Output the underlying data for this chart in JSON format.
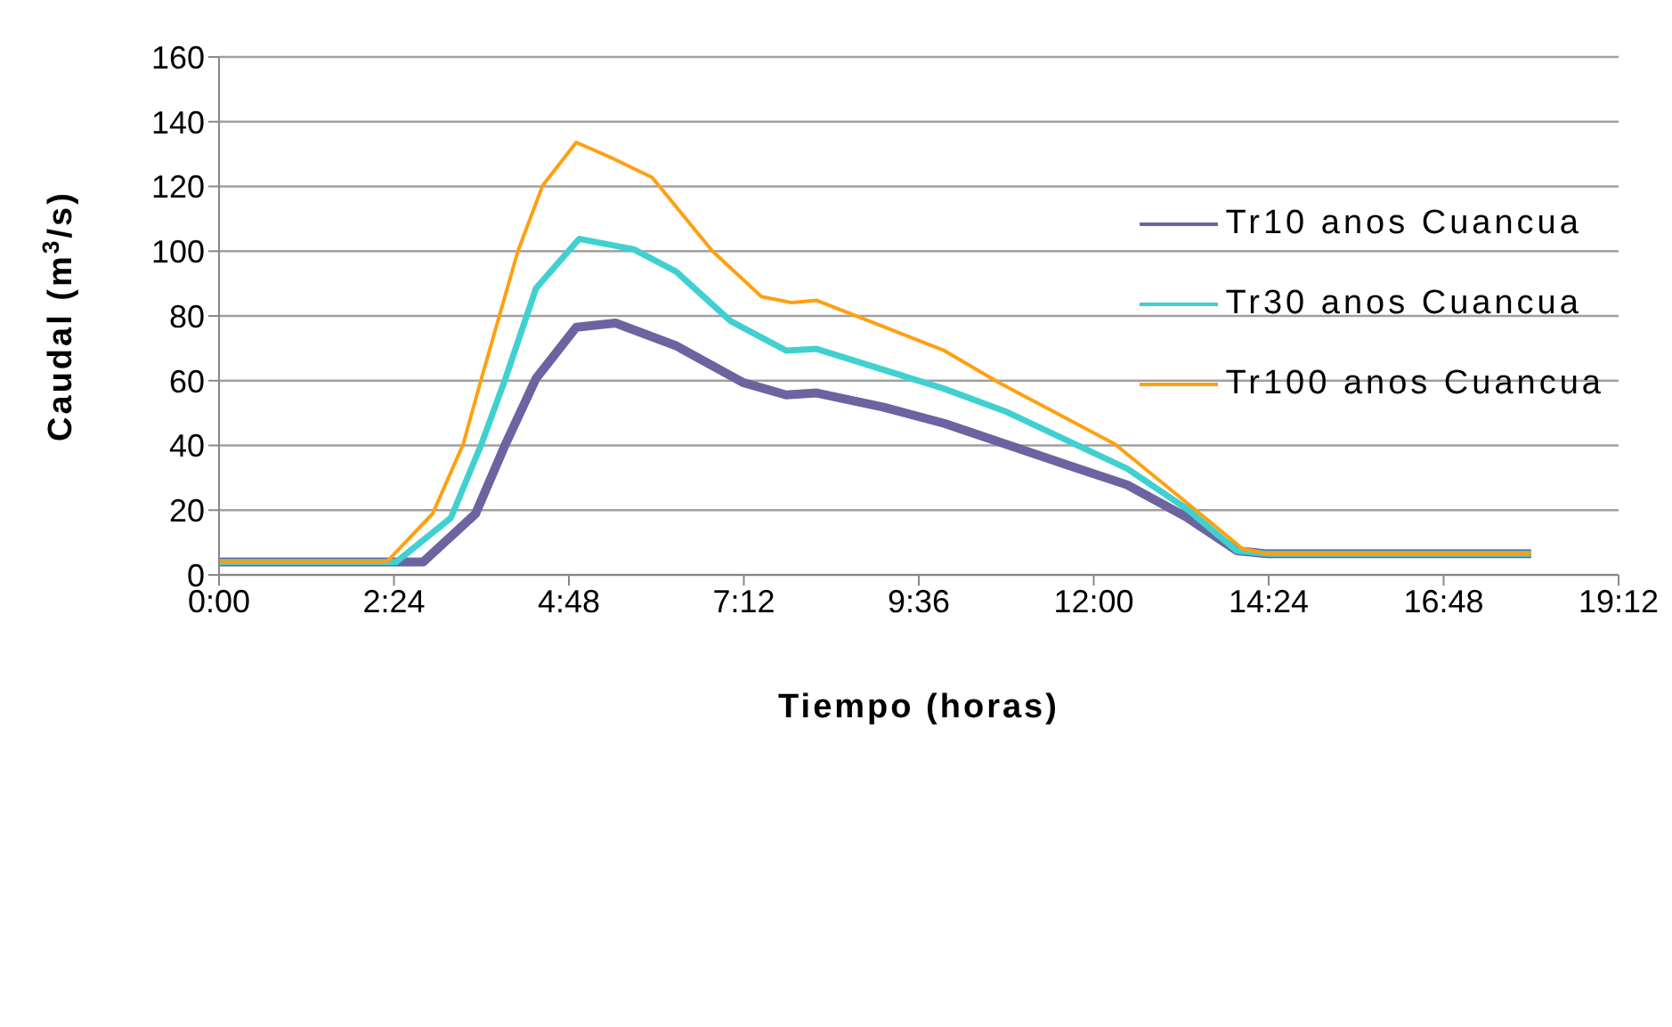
{
  "chart_data": {
    "type": "line",
    "xlabel": "Tiempo (horas)",
    "ylabel": "Caudal (m$^{3}$/s)",
    "xlim": [
      0,
      19.2
    ],
    "xticks": [
      {
        "value": 0,
        "label": "0:00"
      },
      {
        "value": 2.4,
        "label": "2:24"
      },
      {
        "value": 4.8,
        "label": "4:48"
      },
      {
        "value": 7.2,
        "label": "7:12"
      },
      {
        "value": 9.6,
        "label": "9:36"
      },
      {
        "value": 12,
        "label": "12:00"
      },
      {
        "value": 14.4,
        "label": "14:24"
      },
      {
        "value": 16.8,
        "label": "16:48"
      },
      {
        "value": 19.2,
        "label": "19:12"
      }
    ],
    "ylim": [
      0,
      160
    ],
    "yticks": [
      0,
      20,
      40,
      60,
      80,
      100,
      120,
      140,
      160
    ],
    "grid": "y",
    "legend": "top right",
    "marker": "none",
    "line_style": "solid",
    "series": [
      {
        "name": "Tr10  anos Cuancua",
        "color": "#6b64a0",
        "x": [
          0,
          2.8,
          3.52,
          3.93,
          4.35,
          4.9,
          5.44,
          6.27,
          7.19,
          7.78,
          8.2,
          9.12,
          9.95,
          11.62,
          12.46,
          13.29,
          13.96,
          14.38,
          18.0
        ],
        "values": [
          4,
          4,
          18.9,
          40.4,
          60.7,
          76.5,
          77.8,
          70.8,
          59.4,
          55.6,
          56.2,
          51.8,
          46.8,
          34.1,
          27.8,
          17.6,
          7.5,
          6.5,
          6.5
        ]
      },
      {
        "name": "Tr30  anos Cuancua",
        "color": "#40d0d0",
        "x": [
          0,
          2.43,
          3.18,
          3.6,
          3.93,
          4.35,
          4.94,
          5.69,
          6.27,
          7.02,
          7.78,
          8.2,
          9.95,
          10.78,
          12.46,
          13.29,
          13.96,
          14.38,
          18.0
        ],
        "values": [
          4,
          4,
          17.6,
          40.4,
          60.7,
          88.6,
          103.8,
          100.6,
          93.7,
          78.4,
          69.3,
          69.8,
          57.5,
          50.6,
          32.8,
          20.2,
          7.5,
          6.5,
          6.5
        ]
      },
      {
        "name": "Tr100  anos Cuancua",
        "color": "#ffa010",
        "x": [
          0,
          2.3,
          2.93,
          3.35,
          3.6,
          4.1,
          4.44,
          4.9,
          5.35,
          5.94,
          6.77,
          7.44,
          7.86,
          8.2,
          9.95,
          10.7,
          12.29,
          13.46,
          14.04,
          14.38,
          18.0
        ],
        "values": [
          4,
          4,
          18.9,
          40.4,
          60.7,
          100,
          120.3,
          133.6,
          129.2,
          122.8,
          100,
          86,
          84.1,
          84.8,
          69.3,
          59.4,
          40.4,
          18.9,
          8.1,
          6.5,
          6.5
        ]
      }
    ]
  }
}
